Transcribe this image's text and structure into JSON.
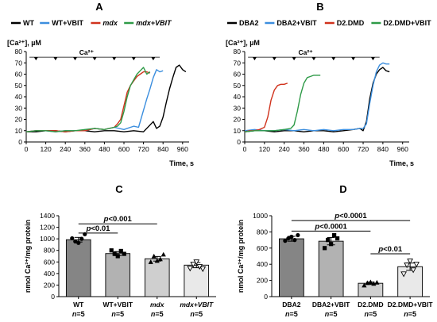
{
  "panels": {
    "A": "A",
    "B": "B",
    "C": "C",
    "D": "D"
  },
  "chart_data": [
    {
      "id": "A",
      "type": "line",
      "panel_label": "A",
      "ylabel": "[Ca²⁺], µM",
      "xlabel": "Time, s",
      "ca_label": "Ca²⁺",
      "ylim": [
        0,
        80
      ],
      "yticks": [
        0,
        10,
        20,
        30,
        40,
        50,
        60,
        70,
        80
      ],
      "xlim": [
        0,
        1000
      ],
      "xticks": [
        0,
        120,
        240,
        360,
        480,
        600,
        720,
        840,
        960
      ],
      "additions": [
        60,
        180,
        300,
        420,
        540,
        660,
        780
      ],
      "series": [
        {
          "name": "WT",
          "color": "#000000",
          "x": [
            0,
            60,
            120,
            180,
            240,
            300,
            360,
            420,
            480,
            540,
            600,
            660,
            720,
            780,
            800,
            820,
            840,
            860,
            880,
            900,
            920,
            940,
            960,
            980
          ],
          "y": [
            9,
            9,
            10,
            10,
            9,
            10,
            10,
            9,
            10,
            10,
            9,
            10,
            9,
            18,
            12,
            14,
            22,
            35,
            47,
            57,
            66,
            68,
            64,
            62
          ]
        },
        {
          "name": "WT+VBIT",
          "color": "#3b8ede",
          "x": [
            0,
            60,
            120,
            180,
            240,
            300,
            360,
            420,
            480,
            540,
            600,
            660,
            690,
            720,
            740,
            760,
            780,
            800,
            820,
            840
          ],
          "y": [
            9,
            10,
            10,
            9,
            10,
            10,
            10,
            12,
            11,
            13,
            11,
            14,
            13,
            28,
            38,
            47,
            57,
            64,
            62,
            63
          ]
        },
        {
          "name": "mdx",
          "color": "#d0321c",
          "x": [
            0,
            60,
            120,
            180,
            240,
            300,
            360,
            420,
            480,
            540,
            560,
            580,
            600,
            620,
            640,
            660,
            680,
            700,
            720,
            740,
            760
          ],
          "y": [
            9,
            10,
            10,
            10,
            9,
            10,
            10,
            12,
            11,
            13,
            16,
            20,
            32,
            44,
            50,
            54,
            58,
            60,
            62,
            62,
            61
          ]
        },
        {
          "name": "mdx+VBIT",
          "color": "#2e9a47",
          "x": [
            0,
            60,
            120,
            180,
            240,
            300,
            360,
            420,
            480,
            540,
            560,
            580,
            600,
            620,
            640,
            660,
            680,
            700,
            720,
            740,
            760
          ],
          "y": [
            9,
            10,
            10,
            9,
            10,
            10,
            11,
            12,
            11,
            13,
            14,
            17,
            27,
            40,
            50,
            55,
            60,
            63,
            66,
            60,
            62
          ]
        }
      ]
    },
    {
      "id": "B",
      "type": "line",
      "panel_label": "B",
      "ylabel": "[Ca²⁺], µM",
      "xlabel": "Time, s",
      "ca_label": "Ca²⁺",
      "ylim": [
        0,
        80
      ],
      "yticks": [
        0,
        10,
        20,
        30,
        40,
        50,
        60,
        70,
        80
      ],
      "xlim": [
        0,
        1000
      ],
      "xticks": [
        0,
        120,
        240,
        360,
        480,
        600,
        720,
        840,
        960
      ],
      "additions": [
        60,
        180,
        300,
        420,
        540,
        660,
        780
      ],
      "series": [
        {
          "name": "DBA2",
          "color": "#000000",
          "x": [
            0,
            60,
            120,
            180,
            240,
            300,
            360,
            420,
            480,
            540,
            600,
            660,
            700,
            720,
            740,
            760,
            780,
            800,
            820,
            840,
            860,
            880
          ],
          "y": [
            9,
            10,
            10,
            9,
            10,
            10,
            9,
            10,
            10,
            9,
            10,
            11,
            12,
            10,
            18,
            38,
            52,
            60,
            64,
            66,
            63,
            62
          ]
        },
        {
          "name": "DBA2+VBIT",
          "color": "#3b8ede",
          "x": [
            0,
            60,
            120,
            180,
            240,
            300,
            360,
            420,
            480,
            540,
            600,
            660,
            700,
            720,
            740,
            760,
            780,
            800,
            820,
            840,
            860,
            880
          ],
          "y": [
            10,
            11,
            10,
            10,
            11,
            10,
            11,
            10,
            11,
            10,
            11,
            11,
            12,
            12,
            16,
            34,
            50,
            62,
            68,
            70,
            69,
            69
          ]
        },
        {
          "name": "D2.DMD",
          "color": "#d0321c",
          "x": [
            0,
            30,
            60,
            90,
            120,
            140,
            160,
            180,
            200,
            220,
            240,
            260
          ],
          "y": [
            9,
            10,
            10,
            11,
            13,
            22,
            37,
            46,
            50,
            51,
            51,
            52
          ]
        },
        {
          "name": "D2.DMD+VBIT",
          "color": "#2e9a47",
          "x": [
            0,
            60,
            120,
            180,
            240,
            280,
            300,
            320,
            340,
            360,
            380,
            400,
            420,
            440,
            460
          ],
          "y": [
            9,
            10,
            10,
            10,
            11,
            12,
            15,
            27,
            42,
            52,
            57,
            58,
            59,
            59,
            59
          ]
        }
      ]
    },
    {
      "id": "C",
      "type": "bar",
      "panel_label": "C",
      "ylabel": "nmol Ca²⁺/mg protein",
      "ylim": [
        0,
        1400
      ],
      "yticks": [
        0,
        200,
        400,
        600,
        800,
        1000,
        1200,
        1400
      ],
      "categories": [
        "WT",
        "WT+VBIT",
        "mdx",
        "mdx+VBIT"
      ],
      "n_labels": [
        "n=5",
        "n=5",
        "n=5",
        "n=5"
      ],
      "values": [
        985,
        745,
        655,
        545
      ],
      "errors": [
        40,
        35,
        40,
        45
      ],
      "bar_colors": [
        "#858585",
        "#b2b2b2",
        "#cfcfcf",
        "#e9e9e9"
      ],
      "marker": [
        "circle",
        "square",
        "triangle-up",
        "triangle-down"
      ],
      "points": [
        [
          1010,
          955,
          930,
          1000,
          1080
        ],
        [
          800,
          740,
          700,
          790,
          740
        ],
        [
          600,
          700,
          620,
          650,
          730
        ],
        [
          490,
          560,
          600,
          520,
          480
        ]
      ],
      "annotations": [
        {
          "from": 0,
          "to": 1,
          "y": 1100,
          "text": "p<0.01"
        },
        {
          "from": 0,
          "to": 2,
          "y": 1260,
          "text": "p<0.001"
        }
      ]
    },
    {
      "id": "D",
      "type": "bar",
      "panel_label": "D",
      "ylabel": "nmol Ca²⁺/mg protein",
      "ylim": [
        0,
        1000
      ],
      "yticks": [
        0,
        200,
        400,
        600,
        800,
        1000
      ],
      "categories": [
        "DBA2",
        "DBA2+VBIT",
        "D2.DMD",
        "D2.DMD+VBIT"
      ],
      "n_labels": [
        "n=5",
        "n=5",
        "n=5",
        "n=5"
      ],
      "values": [
        715,
        685,
        165,
        370
      ],
      "errors": [
        30,
        45,
        15,
        45
      ],
      "bar_colors": [
        "#858585",
        "#b2b2b2",
        "#cfcfcf",
        "#e9e9e9"
      ],
      "marker": [
        "circle",
        "square",
        "triangle-up",
        "triangle-down"
      ],
      "points": [
        [
          690,
          720,
          740,
          700,
          760
        ],
        [
          600,
          700,
          650,
          760,
          720
        ],
        [
          140,
          170,
          180,
          160,
          175
        ],
        [
          280,
          390,
          440,
          330,
          400
        ]
      ],
      "annotations": [
        {
          "from": 0,
          "to": 2,
          "y": 810,
          "text": "p<0.0001"
        },
        {
          "from": 0,
          "to": 3,
          "y": 940,
          "text": "p<0.0001"
        },
        {
          "from": 2,
          "to": 3,
          "y": 530,
          "text": "p<0.01"
        }
      ]
    }
  ]
}
